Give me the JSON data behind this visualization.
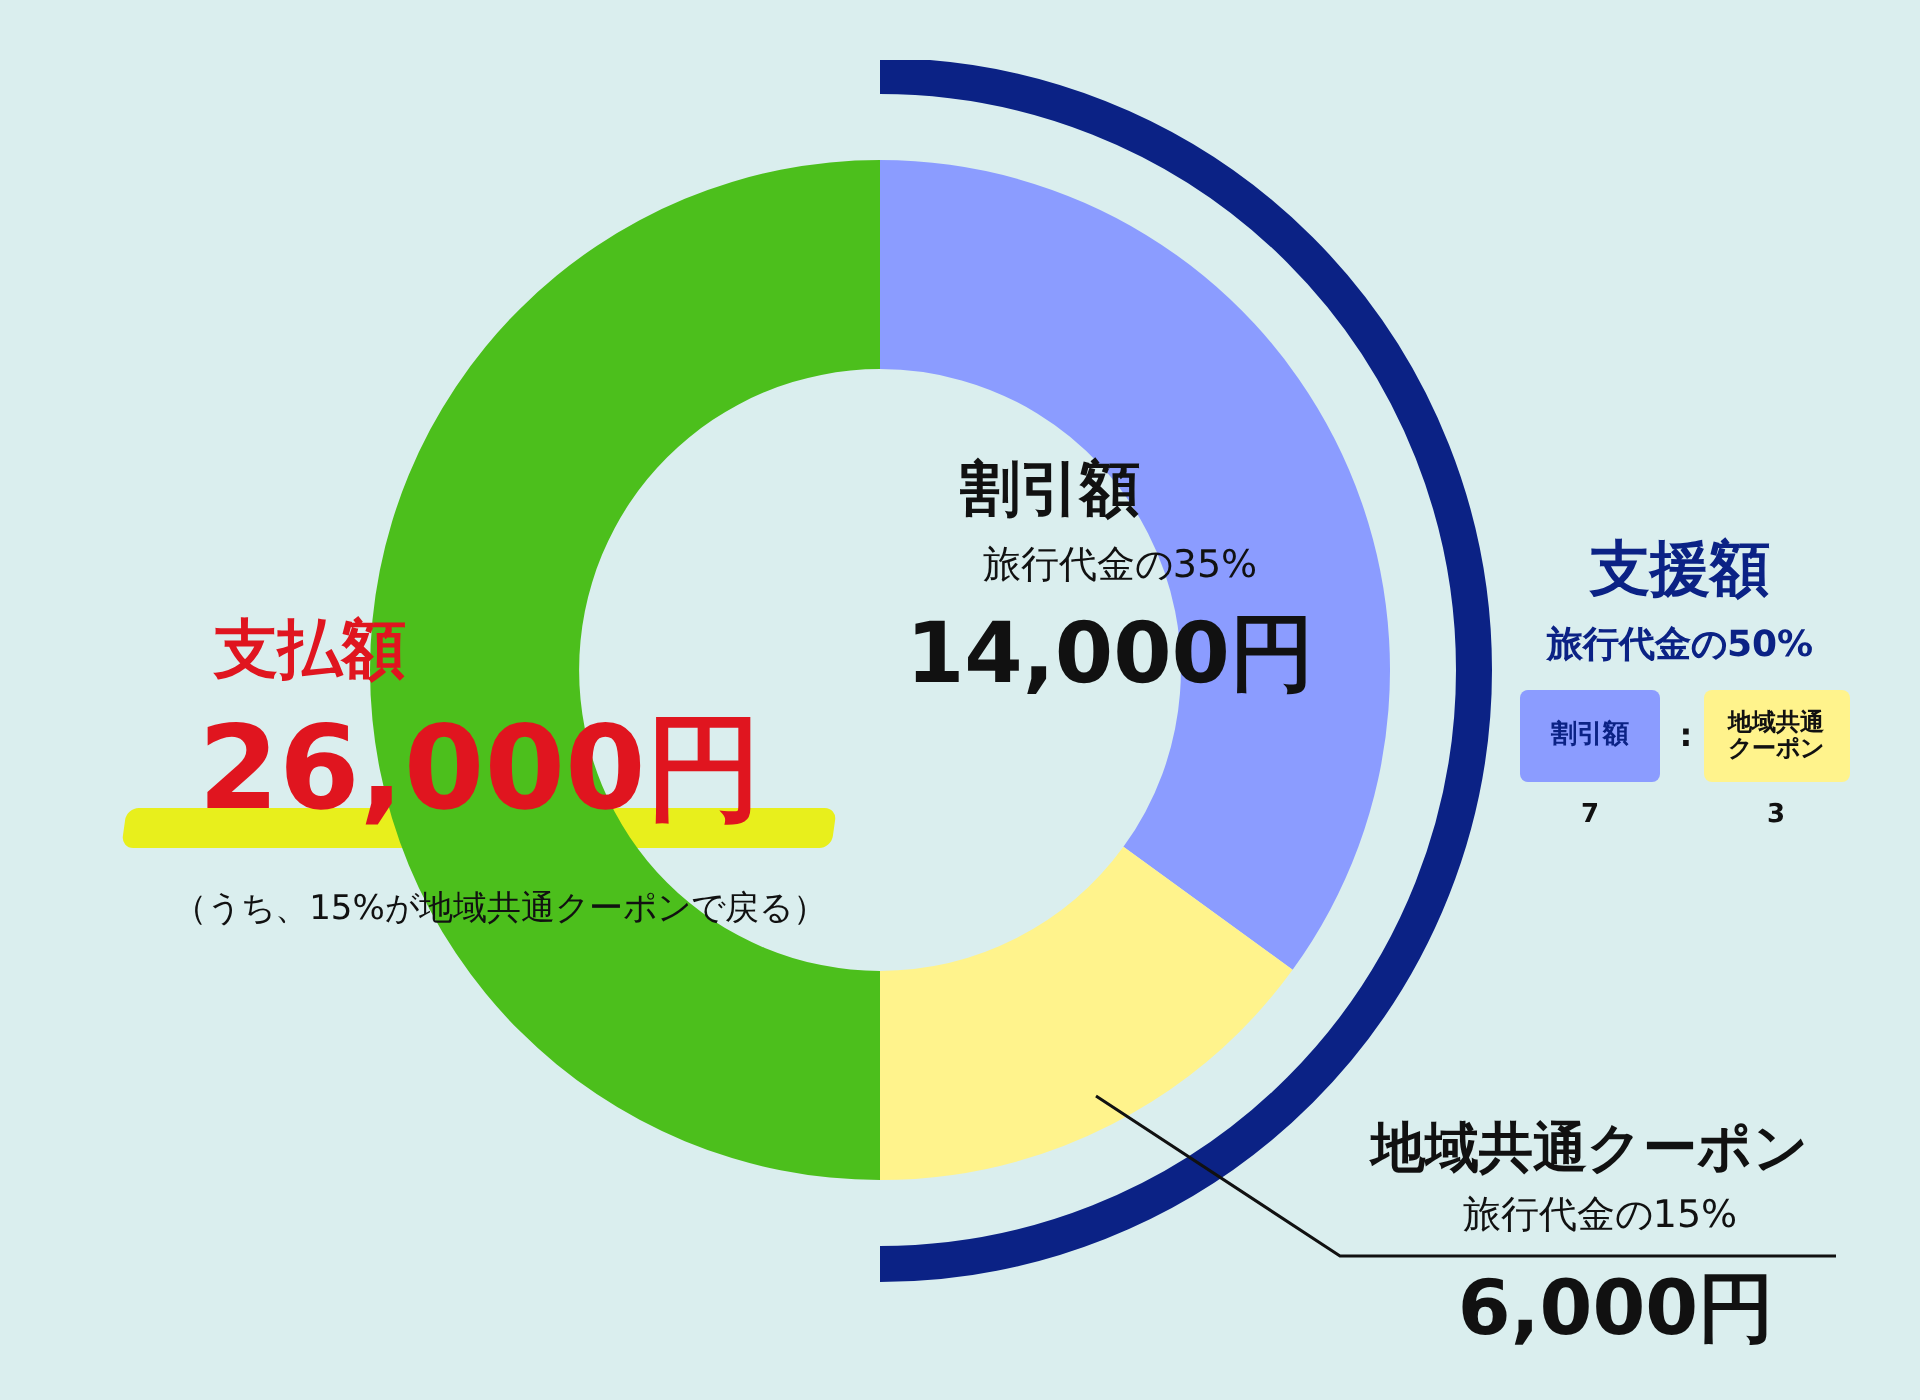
{
  "chart_data": {
    "type": "donut",
    "categories": [
      "割引額",
      "地域共通クーポン",
      "支払額"
    ],
    "values": [
      35,
      15,
      50
    ],
    "colors": [
      "#8b9cff",
      "#fff38c",
      "#4cbf1c"
    ],
    "legend": false,
    "annotations": [
      "旅行代金の35%",
      "14,000円",
      "旅行代金の15%",
      "6,000円",
      "26,000円",
      "（うち、15%が地域共通クーポンで戻る）",
      "支援額",
      "旅行代金の50%",
      "割引額",
      "地域共通クーポン",
      ":",
      "7",
      "3"
    ]
  }
}
